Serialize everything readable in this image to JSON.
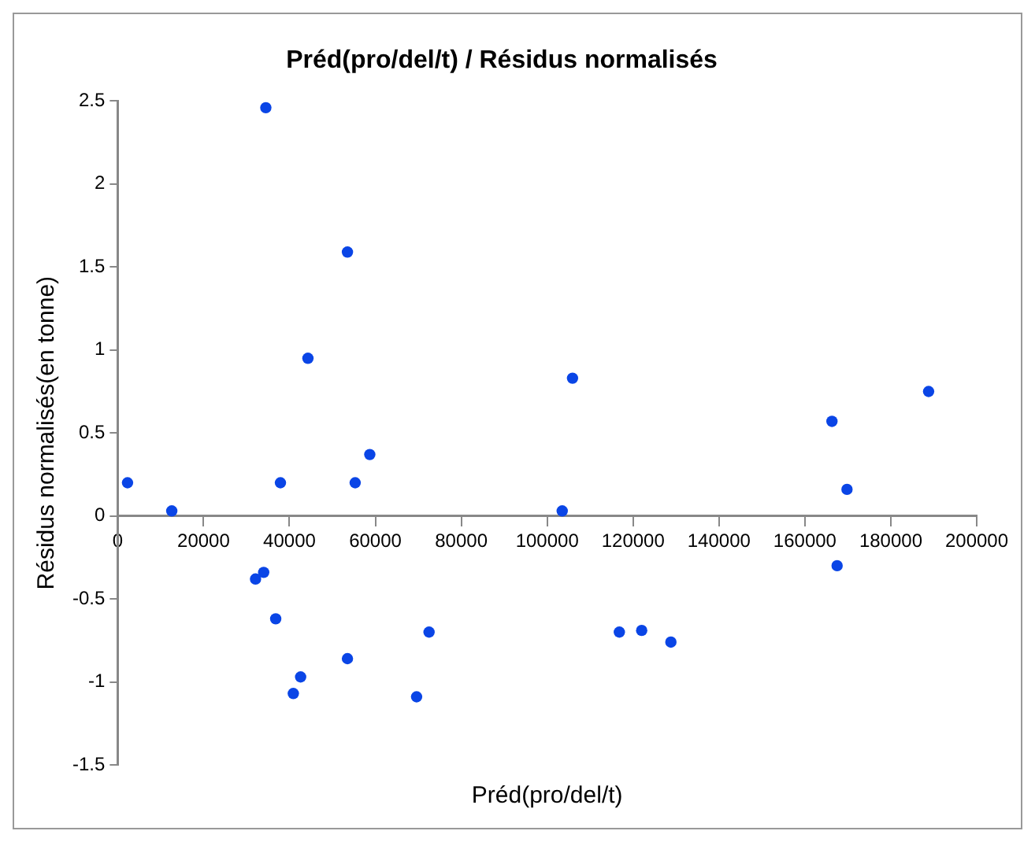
{
  "chart_data": {
    "type": "scatter",
    "title": "Préd(pro/del/t) / Résidus normalisés",
    "xlabel": "Préd(pro/del/t)",
    "ylabel": "Résidus normalisés(en tonne)",
    "xlim": [
      0,
      200000
    ],
    "xticks": [
      0,
      20000,
      40000,
      60000,
      80000,
      100000,
      120000,
      140000,
      160000,
      180000,
      200000
    ],
    "ylim": [
      -1.5,
      2.5
    ],
    "yticks": [
      -1.5,
      -1,
      -0.5,
      0,
      0.5,
      1,
      1.5,
      2,
      2.5
    ],
    "grid": false,
    "legend": false,
    "marker": "circle",
    "series": [
      {
        "color": "#0a45e6",
        "x": [
          2300,
          12600,
          34500,
          53500,
          44300,
          37900,
          55300,
          58700,
          103500,
          105900,
          166300,
          169800,
          188800,
          32100,
          34000,
          36800,
          42600,
          40900,
          53500,
          69600,
          72500,
          116800,
          122000,
          128800,
          167500
        ],
        "values": [
          0.2,
          0.03,
          2.46,
          1.59,
          0.95,
          0.2,
          0.2,
          0.37,
          0.03,
          0.83,
          0.57,
          0.16,
          0.75,
          -0.38,
          -0.34,
          -0.62,
          -0.97,
          -1.07,
          -0.86,
          -1.09,
          -0.7,
          -0.7,
          -0.69,
          -0.76,
          -0.3
        ]
      }
    ]
  }
}
